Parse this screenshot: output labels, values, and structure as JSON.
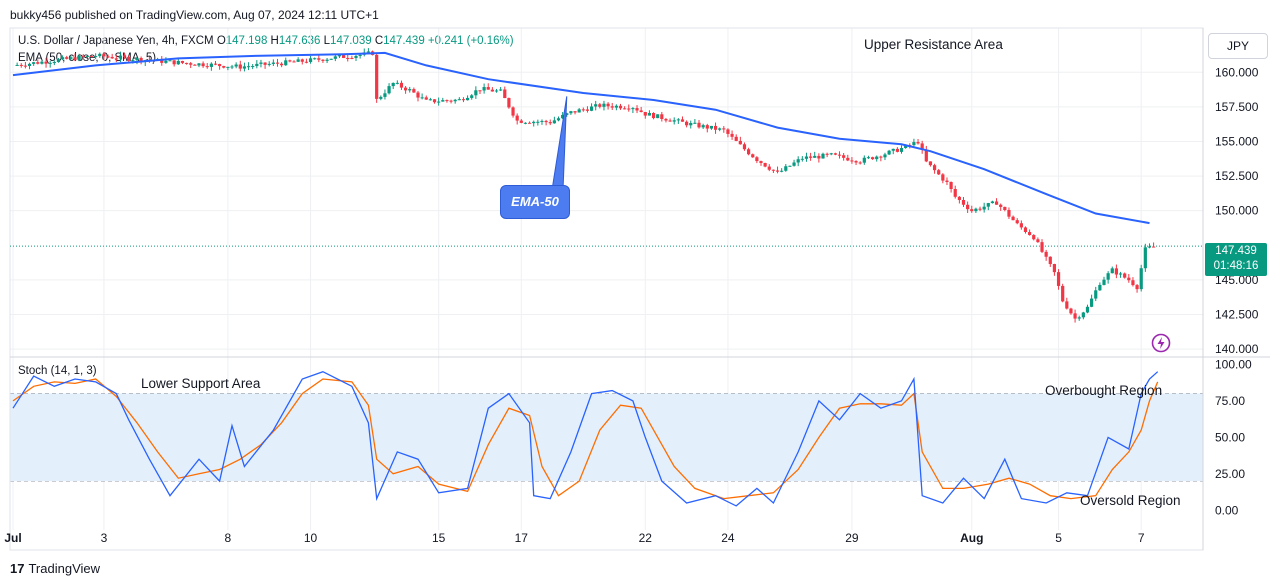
{
  "header": {
    "publish_line": "bukky456 published on TradingView.com, Aug 07, 2024 12:11 UTC+1"
  },
  "legend": {
    "symbol": "U.S. Dollar / Japanese Yen, 4h, FXCM",
    "o_label": "O",
    "o": "147.198",
    "h_label": "H",
    "h": "147.636",
    "l_label": "L",
    "l": "147.039",
    "c_label": "C",
    "c": "147.439",
    "change": "+0.241 (+0.16%)",
    "ema": "EMA (50, close, 0, SMA, 5)",
    "stoch": "Stoch (14, 1, 3)"
  },
  "currency_button": "JPY",
  "price_tag": {
    "price": "147.439",
    "countdown": "01:48:16",
    "color": "#089981"
  },
  "annotations": {
    "upper_resistance": "Upper Resistance Area",
    "lower_support": "Lower Support Area",
    "overbought": "Overbought Region",
    "oversold": "Oversold Region",
    "ema_callout": "EMA-50"
  },
  "footer": {
    "brand": "TradingView"
  },
  "colors": {
    "up": "#089981",
    "down": "#f23645",
    "ema": "#2962ff",
    "stoch_k": "#2962ff",
    "stoch_d": "#ff6d00",
    "band": "#e3f0fb",
    "grid": "#eef0f3"
  },
  "chart_data": [
    {
      "type": "candlestick",
      "title": "U.S. Dollar / Japanese Yen, 4h, FXCM",
      "ylim": [
        139.5,
        163.2
      ],
      "y_ticks": [
        "160.000",
        "157.500",
        "155.000",
        "152.500",
        "150.000",
        "145.000",
        "142.500",
        "140.000"
      ],
      "y_tick_values": [
        160,
        157.5,
        155,
        152.5,
        150,
        145,
        142.5,
        140
      ],
      "x_ticks": [
        "Jul",
        "3",
        "8",
        "10",
        "15",
        "17",
        "22",
        "24",
        "29",
        "Aug",
        "5",
        "7"
      ],
      "x_tick_index": [
        0,
        22,
        52,
        72,
        103,
        123,
        153,
        173,
        203,
        232,
        253,
        273
      ],
      "last_price": 147.439,
      "ohlc": [],
      "ema": {
        "name": "EMA (50, close, 0, SMA, 5)",
        "points": [
          [
            0,
            159.8
          ],
          [
            20,
            160.5
          ],
          [
            40,
            161.0
          ],
          [
            60,
            161.2
          ],
          [
            80,
            161.3
          ],
          [
            90,
            161.4
          ],
          [
            100,
            160.5
          ],
          [
            115,
            159.5
          ],
          [
            138,
            158.5
          ],
          [
            155,
            158.0
          ],
          [
            170,
            157.3
          ],
          [
            185,
            156.0
          ],
          [
            200,
            155.2
          ],
          [
            215,
            154.8
          ],
          [
            222,
            154.3
          ],
          [
            235,
            153.0
          ],
          [
            250,
            151.2
          ],
          [
            262,
            149.8
          ],
          [
            275,
            149.1
          ]
        ]
      },
      "candle_anchors": [
        [
          0,
          160.5
        ],
        [
          20,
          161.2
        ],
        [
          40,
          160.7
        ],
        [
          55,
          160.4
        ],
        [
          70,
          160.8
        ],
        [
          85,
          161.3
        ],
        [
          87,
          161.4
        ],
        [
          88,
          158.0
        ],
        [
          92,
          159.2
        ],
        [
          96,
          158.7
        ],
        [
          100,
          157.9
        ],
        [
          108,
          158.0
        ],
        [
          113,
          158.8
        ],
        [
          118,
          158.6
        ],
        [
          122,
          156.5
        ],
        [
          130,
          156.4
        ],
        [
          135,
          157.1
        ],
        [
          142,
          157.6
        ],
        [
          150,
          157.5
        ],
        [
          153,
          157.0
        ],
        [
          163,
          156.3
        ],
        [
          172,
          155.8
        ],
        [
          176,
          154.7
        ],
        [
          180,
          153.7
        ],
        [
          185,
          152.7
        ],
        [
          191,
          153.8
        ],
        [
          198,
          154.0
        ],
        [
          205,
          153.6
        ],
        [
          212,
          154.2
        ],
        [
          216,
          154.6
        ],
        [
          219,
          155.0
        ],
        [
          221,
          153.5
        ],
        [
          226,
          152.0
        ],
        [
          228,
          151.0
        ],
        [
          232,
          150.0
        ],
        [
          238,
          150.6
        ],
        [
          243,
          149.0
        ],
        [
          247,
          148.1
        ],
        [
          250,
          146.5
        ],
        [
          252,
          145.5
        ],
        [
          254,
          143.5
        ],
        [
          257,
          142.2
        ],
        [
          260,
          143.0
        ],
        [
          263,
          144.8
        ],
        [
          266,
          145.7
        ],
        [
          270,
          145.0
        ],
        [
          272,
          144.5
        ],
        [
          274,
          147.2
        ],
        [
          276,
          147.4
        ]
      ]
    },
    {
      "type": "line",
      "title": "Stoch (14, 1, 3)",
      "ylim": [
        -8,
        103
      ],
      "y_ticks": [
        "100.00",
        "75.00",
        "50.00",
        "25.00",
        "0.00"
      ],
      "y_tick_values": [
        100,
        75,
        50,
        25,
        0
      ],
      "levels": [
        80,
        50,
        20
      ],
      "series": [
        {
          "name": "%K",
          "points": [
            [
              0,
              70
            ],
            [
              5,
              92
            ],
            [
              10,
              85
            ],
            [
              15,
              90
            ],
            [
              20,
              88
            ],
            [
              25,
              80
            ],
            [
              28,
              62
            ],
            [
              33,
              35
            ],
            [
              38,
              10
            ],
            [
              45,
              35
            ],
            [
              50,
              20
            ],
            [
              53,
              58
            ],
            [
              56,
              30
            ],
            [
              63,
              55
            ],
            [
              70,
              90
            ],
            [
              75,
              95
            ],
            [
              82,
              85
            ],
            [
              86,
              60
            ],
            [
              88,
              8
            ],
            [
              93,
              40
            ],
            [
              98,
              35
            ],
            [
              103,
              12
            ],
            [
              110,
              15
            ],
            [
              115,
              70
            ],
            [
              120,
              80
            ],
            [
              125,
              60
            ],
            [
              126,
              10
            ],
            [
              130,
              8
            ],
            [
              135,
              40
            ],
            [
              140,
              80
            ],
            [
              145,
              82
            ],
            [
              150,
              75
            ],
            [
              153,
              50
            ],
            [
              157,
              20
            ],
            [
              163,
              5
            ],
            [
              170,
              10
            ],
            [
              175,
              3
            ],
            [
              180,
              15
            ],
            [
              184,
              5
            ],
            [
              190,
              40
            ],
            [
              195,
              75
            ],
            [
              200,
              62
            ],
            [
              205,
              80
            ],
            [
              210,
              70
            ],
            [
              215,
              75
            ],
            [
              218,
              90
            ],
            [
              220,
              10
            ],
            [
              225,
              5
            ],
            [
              230,
              22
            ],
            [
              235,
              8
            ],
            [
              240,
              35
            ],
            [
              244,
              8
            ],
            [
              250,
              5
            ],
            [
              255,
              12
            ],
            [
              260,
              10
            ],
            [
              265,
              50
            ],
            [
              270,
              42
            ],
            [
              273,
              80
            ],
            [
              275,
              90
            ],
            [
              277,
              95
            ]
          ]
        },
        {
          "name": "%D",
          "points": [
            [
              0,
              75
            ],
            [
              5,
              85
            ],
            [
              10,
              88
            ],
            [
              15,
              87
            ],
            [
              20,
              90
            ],
            [
              25,
              78
            ],
            [
              30,
              60
            ],
            [
              35,
              40
            ],
            [
              40,
              22
            ],
            [
              45,
              25
            ],
            [
              50,
              28
            ],
            [
              55,
              35
            ],
            [
              60,
              45
            ],
            [
              65,
              60
            ],
            [
              70,
              80
            ],
            [
              75,
              90
            ],
            [
              82,
              88
            ],
            [
              86,
              72
            ],
            [
              88,
              35
            ],
            [
              92,
              25
            ],
            [
              98,
              30
            ],
            [
              103,
              18
            ],
            [
              110,
              13
            ],
            [
              115,
              45
            ],
            [
              120,
              70
            ],
            [
              125,
              65
            ],
            [
              128,
              30
            ],
            [
              132,
              10
            ],
            [
              137,
              20
            ],
            [
              142,
              55
            ],
            [
              147,
              72
            ],
            [
              152,
              70
            ],
            [
              155,
              55
            ],
            [
              160,
              30
            ],
            [
              165,
              15
            ],
            [
              172,
              8
            ],
            [
              178,
              10
            ],
            [
              184,
              12
            ],
            [
              190,
              28
            ],
            [
              195,
              50
            ],
            [
              200,
              70
            ],
            [
              205,
              73
            ],
            [
              210,
              73
            ],
            [
              215,
              72
            ],
            [
              218,
              80
            ],
            [
              220,
              40
            ],
            [
              225,
              15
            ],
            [
              230,
              15
            ],
            [
              236,
              18
            ],
            [
              241,
              22
            ],
            [
              246,
              18
            ],
            [
              251,
              10
            ],
            [
              256,
              8
            ],
            [
              262,
              10
            ],
            [
              266,
              28
            ],
            [
              270,
              40
            ],
            [
              273,
              55
            ],
            [
              275,
              75
            ],
            [
              277,
              88
            ]
          ]
        }
      ]
    }
  ]
}
